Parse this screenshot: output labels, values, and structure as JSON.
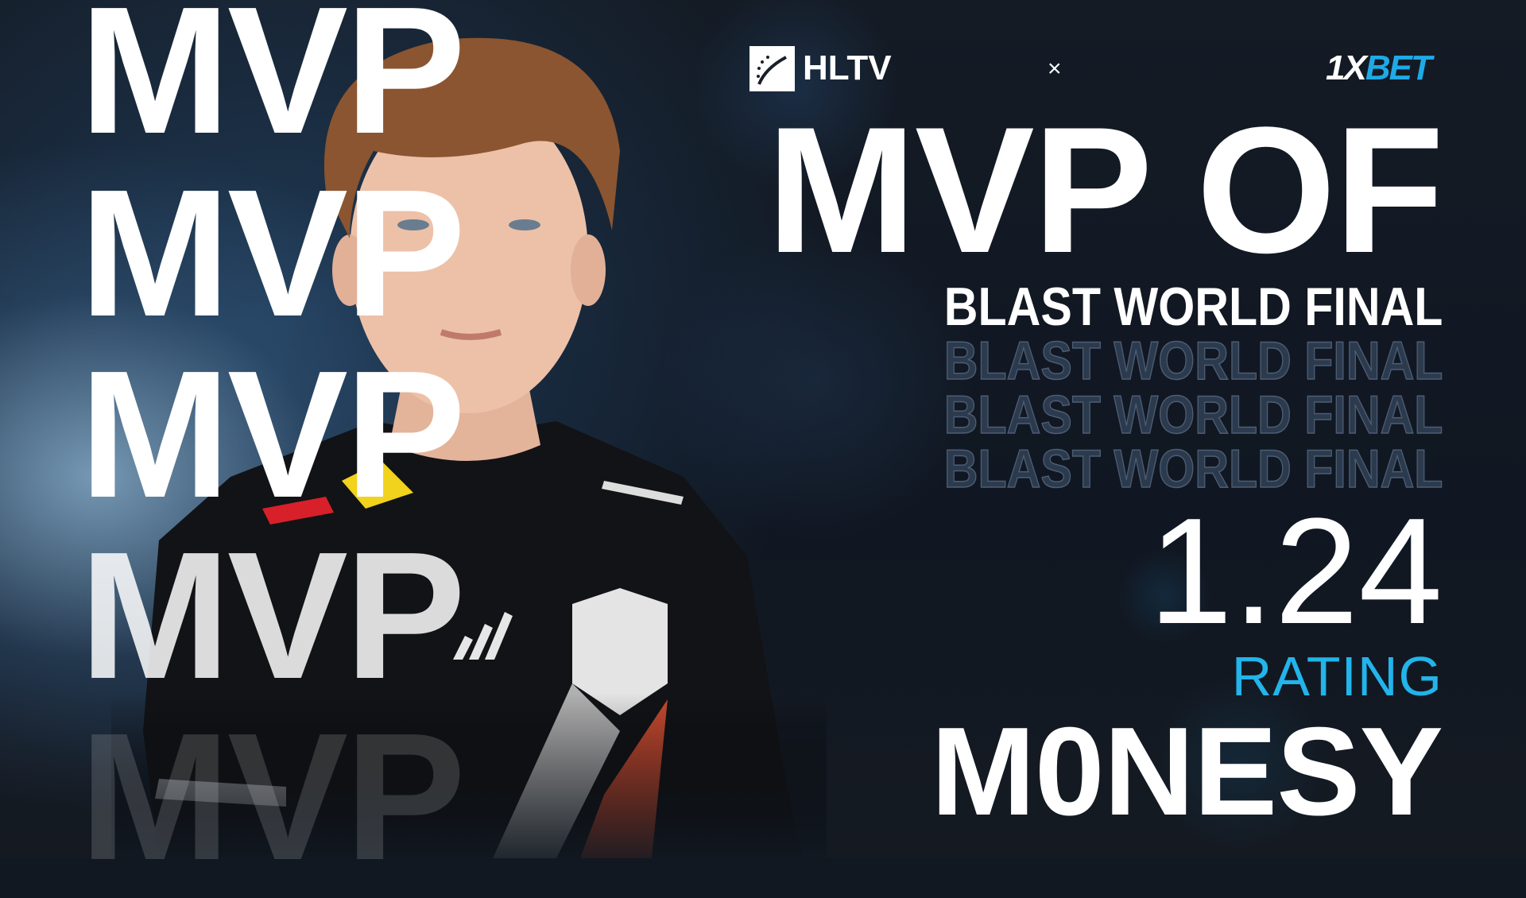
{
  "background_rows": [
    "MVP",
    "MVP",
    "MVP",
    "MVP",
    "MVP"
  ],
  "header": {
    "brand": "HLTV",
    "separator": "×",
    "partner": {
      "prefix": "1X",
      "suffix": "BET"
    }
  },
  "title": "MVP OF",
  "event": "BLAST WORLD FINAL",
  "event_echo": [
    "BLAST WORLD FINAL",
    "BLAST WORLD FINAL",
    "BLAST WORLD FINAL"
  ],
  "stat": {
    "value": "1.24",
    "label": "RATING"
  },
  "player_name": "M0NESY",
  "jersey_logos": [
    "Red Bull",
    "logitech G",
    "adidas",
    "G2"
  ],
  "colors": {
    "accent": "#22b4ea",
    "background": "#111821",
    "text": "#ffffff",
    "partner_blue": "#1fa9e6"
  }
}
